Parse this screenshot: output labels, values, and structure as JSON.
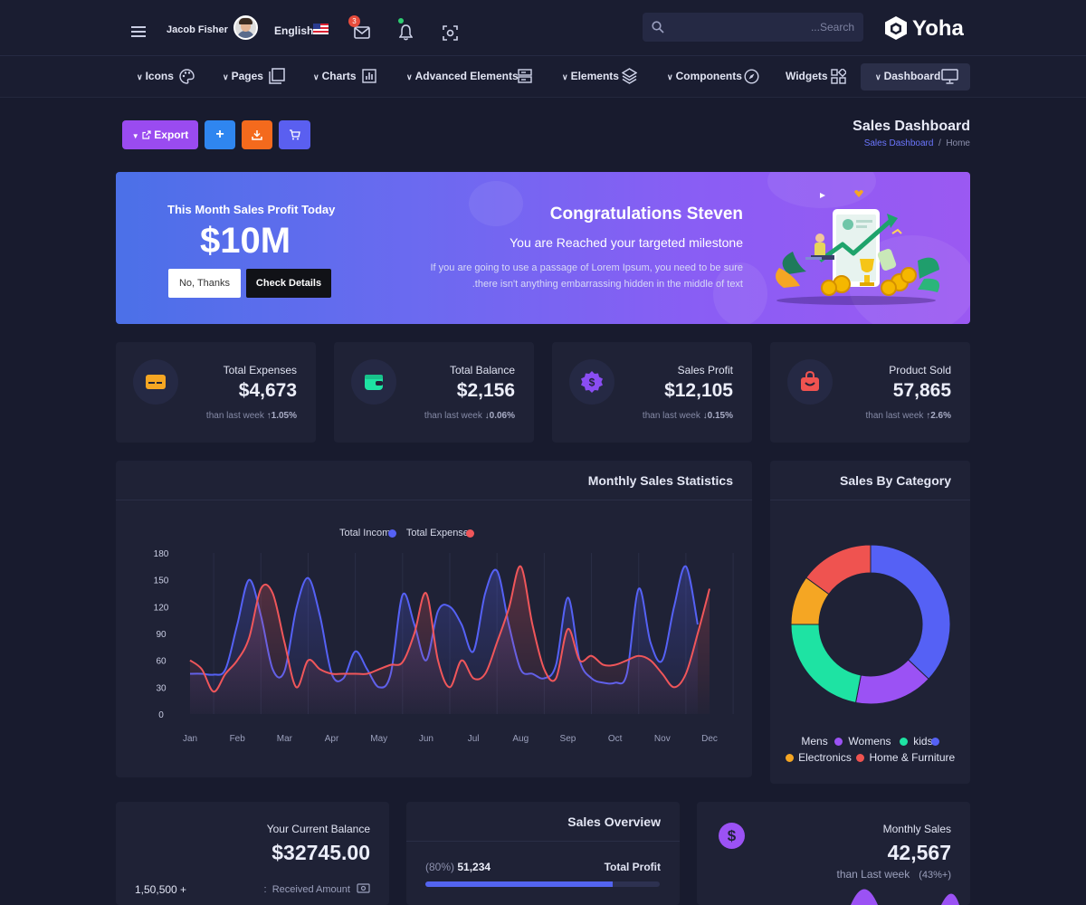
{
  "header": {
    "user_name": "Jacob Fisher",
    "language": "English",
    "mail_badge": "3",
    "search_placeholder": "...Search",
    "logo": "Yoha"
  },
  "nav": {
    "items": [
      {
        "label": "Icons",
        "icon": "palette-icon"
      },
      {
        "label": "Pages",
        "icon": "pages-icon"
      },
      {
        "label": "Charts",
        "icon": "bar-chart-icon"
      },
      {
        "label": "Advanced Elements",
        "icon": "server-icon"
      },
      {
        "label": "Elements",
        "icon": "layers-icon"
      },
      {
        "label": "Components",
        "icon": "compass-icon"
      },
      {
        "label": "Widgets",
        "icon": "widgets-icon"
      },
      {
        "label": "Dashboard",
        "icon": "monitor-icon"
      }
    ]
  },
  "toolbar": {
    "export_label": "Export",
    "add_label": "+",
    "colors": {
      "export": "#9a4bf0",
      "add": "#2f86f0",
      "download": "#f46a1d",
      "cart": "#5a5ff0"
    }
  },
  "page": {
    "title": "Sales Dashboard",
    "breadcrumb": {
      "current": "Sales Dashboard",
      "sep": "/",
      "home": "Home"
    }
  },
  "banner": {
    "subtitle": "This Month Sales Profit Today",
    "amount": "$10M",
    "btn_no": "No, Thanks",
    "btn_details": "Check Details",
    "congrats": "Congratulations Steven",
    "milestone": "You are Reached your targeted milestone",
    "desc_line1": "If you are going to use a passage of Lorem Ipsum, you need to be sure",
    "desc_line2": ".there isn't anything embarrassing hidden in the middle of text"
  },
  "stats": [
    {
      "label": "Total Expenses",
      "value": "$4,673",
      "foot": "than last week",
      "arrow": "↑",
      "change": "1.05%",
      "color": "#f5a623",
      "icon": "card-icon"
    },
    {
      "label": "Total Balance",
      "value": "$2,156",
      "foot": "than last week",
      "arrow": "↓",
      "change": "0.06%",
      "color": "#1ee3a3",
      "icon": "wallet-icon"
    },
    {
      "label": "Sales Profit",
      "value": "$12,105",
      "foot": "than last week",
      "arrow": "↓",
      "change": "0.15%",
      "color": "#8a4df3",
      "icon": "dollar-badge-icon"
    },
    {
      "label": "Product Sold",
      "value": "57,865",
      "foot": "than last week",
      "arrow": "↑",
      "change": "2.6%",
      "color": "#ef5350",
      "icon": "shopping-bag-icon"
    }
  ],
  "monthly_chart": {
    "title": "Monthly Sales Statistics",
    "legend": [
      {
        "label": "Total Income",
        "color": "#5561f5"
      },
      {
        "label": "Total Expenses",
        "color": "#f0565a"
      }
    ]
  },
  "category_chart": {
    "title": "Sales By Category",
    "legend": [
      {
        "label": "Mens",
        "color": "#5561f5"
      },
      {
        "label": "Womens",
        "color": "#9b52f4"
      },
      {
        "label": "kids",
        "color": "#1ee3a3"
      },
      {
        "label": "Electronics",
        "color": "#f5a623"
      },
      {
        "label": "Home & Furniture",
        "color": "#ef5350"
      }
    ]
  },
  "chart_data": [
    {
      "type": "line",
      "title": "Monthly Sales Statistics",
      "categories": [
        "Jan",
        "Feb",
        "Mar",
        "Apr",
        "May",
        "Jun",
        "Jul",
        "Aug",
        "Sep",
        "Oct",
        "Nov",
        "Dec"
      ],
      "ylim": [
        0,
        180
      ],
      "yticks": [
        0,
        30,
        60,
        90,
        120,
        150,
        180
      ],
      "grid": "vertical",
      "legend": "top-center",
      "series": [
        {
          "name": "Total Income",
          "color": "#5561f5",
          "x": [
            0,
            0.25,
            0.5,
            0.75,
            1,
            1.25,
            1.5,
            1.75,
            2,
            2.25,
            2.5,
            2.75,
            3,
            3.25,
            3.5,
            3.75,
            4,
            4.25,
            4.5,
            4.75,
            5,
            5.25,
            5.5,
            5.75,
            6,
            6.25,
            6.5,
            6.75,
            7,
            7.25,
            7.5,
            7.75,
            8,
            8.25,
            8.5,
            8.75,
            9,
            9.25,
            9.5,
            9.75,
            10,
            10.25,
            10.5,
            10.75,
            11
          ],
          "values": [
            45,
            45,
            44,
            50,
            100,
            150,
            110,
            50,
            48,
            118,
            152,
            110,
            45,
            40,
            70,
            50,
            30,
            45,
            133,
            100,
            60,
            115,
            120,
            100,
            70,
            135,
            160,
            100,
            50,
            45,
            40,
            55,
            130,
            60,
            40,
            35,
            35,
            45,
            140,
            80,
            60,
            120,
            165,
            100,
            null
          ]
        },
        {
          "name": "Total Expenses",
          "color": "#f0565a",
          "x": [
            0,
            0.25,
            0.5,
            0.75,
            1,
            1.25,
            1.5,
            1.75,
            2,
            2.25,
            2.5,
            2.75,
            3,
            3.25,
            3.5,
            3.75,
            4,
            4.25,
            4.5,
            4.75,
            5,
            5.25,
            5.5,
            5.75,
            6,
            6.25,
            6.5,
            6.75,
            7,
            7.25,
            7.5,
            7.75,
            8,
            8.25,
            8.5,
            8.75,
            9,
            9.25,
            9.5,
            9.75,
            10,
            10.25,
            10.5,
            10.75,
            11
          ],
          "values": [
            60,
            50,
            25,
            45,
            60,
            85,
            140,
            135,
            80,
            30,
            60,
            50,
            45,
            45,
            45,
            45,
            50,
            55,
            58,
            90,
            135,
            60,
            30,
            60,
            40,
            45,
            80,
            118,
            165,
            100,
            50,
            40,
            95,
            60,
            65,
            55,
            55,
            60,
            65,
            60,
            45,
            30,
            45,
            90,
            140
          ]
        }
      ]
    },
    {
      "type": "pie",
      "title": "Sales By Category",
      "categories": [
        "Mens",
        "Womens",
        "kids",
        "Electronics",
        "Home & Furniture"
      ],
      "values": [
        37,
        16,
        22,
        10,
        15
      ],
      "colors": [
        "#5561f5",
        "#9b52f4",
        "#1ee3a3",
        "#f5a623",
        "#ef5350"
      ],
      "donut": true,
      "legend": "bottom"
    }
  ],
  "bottom": {
    "balance": {
      "label": "Your Current Balance",
      "value": "$32745.00",
      "left_value": "1,50,500 +",
      "received_label": "Received Amount",
      "colon": ":"
    },
    "overview": {
      "title": "Sales Overview",
      "pct": "(80%)",
      "count": "51,234",
      "profit_label": "Total Profit",
      "progress": 0.8
    },
    "monthly": {
      "label": "Monthly Sales",
      "value": "42,567",
      "foot": "than Last week",
      "change": "(43%+)"
    }
  }
}
